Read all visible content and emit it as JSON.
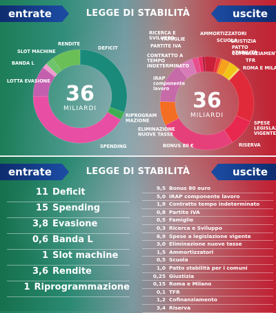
{
  "header": {
    "left_tab": "entrate",
    "title": "LEGGE DI STABILITÀ",
    "right_tab": "uscite"
  },
  "chart_data": [
    {
      "type": "pie",
      "series_side": "entrate",
      "center_value": "36",
      "center_label": "MILIARDI",
      "categories": [
        "Deficit",
        "Ripro­grammazione",
        "Spending",
        "Lotta evasione",
        "Banda L",
        "Slot machine",
        "Rendite"
      ],
      "labels": [
        "DEFICIT",
        "RIPROGRAM MAZIONE",
        "SPENDING",
        "LOTTA EVASIONE",
        "BANDA L",
        "SLOT MACHINE",
        "RENDITE"
      ],
      "values": [
        11,
        1,
        15,
        3.8,
        0.6,
        1,
        3.6
      ],
      "colors": [
        "#1a8a7a",
        "#3fae52",
        "#e84ea3",
        "#c35fae",
        "#f29bcf",
        "#6dc46a",
        "#6bbf57"
      ]
    },
    {
      "type": "pie",
      "series_side": "uscite",
      "center_value": "36",
      "center_label": "MILIARDI",
      "categories": [
        "Ammortizzatori",
        "Scuola",
        "Giustizia",
        "Patto stabilità",
        "Cofinanziamento",
        "TFR",
        "Roma e Milano",
        "Spese legislazione vigente",
        "Riserva",
        "Bonus 80 €",
        "Eliminazione nuove tasse",
        "IRAP componente lavoro",
        "Contratto a tempo indeterminato",
        "Partite IVA",
        "Famiglie",
        "Ricerca e Sviluppo"
      ],
      "labels": [
        "AMMORTIZZATORI",
        "SCUOLA",
        "GIUSTIZIA",
        "PATTO STABILITÀ",
        "COFINANZIAMENTO",
        "TFR",
        "ROMA E MILANO",
        "SPESE LEGISLAZ. VIGENTE",
        "RISERVA",
        "BONUS 80 €",
        "ELIMINAZIONE NUOVE TASSE",
        "IRAP componente lavoro",
        "CONTRATTO A TEMPO INDETERMINATO",
        "PARTITE IVA",
        "FAMIGLIE",
        "RICERCA E SVILUPPO"
      ],
      "values": [
        1.5,
        0.5,
        0.25,
        1,
        1.2,
        0.1,
        0.15,
        6.9,
        3.4,
        9.5,
        3,
        5,
        1.9,
        0.8,
        0.5,
        0.3
      ],
      "colors": [
        "#c9213a",
        "#e8323c",
        "#f07b1f",
        "#f7a21c",
        "#f2c418",
        "#f5d23c",
        "#f0e04a",
        "#e02a3a",
        "#e8284f",
        "#e6407a",
        "#f36d23",
        "#c76aa8",
        "#d77bb6",
        "#e64f8e",
        "#ec2f63",
        "#b31b3b"
      ]
    }
  ],
  "entrate_list": [
    {
      "value": "11",
      "name": "Deficit"
    },
    {
      "value": "15",
      "name": "Spending"
    },
    {
      "value": "3,8",
      "name": "Evasione"
    },
    {
      "value": "0,6",
      "name": "Banda L"
    },
    {
      "value": "1",
      "name": "Slot machine"
    },
    {
      "value": "3,6",
      "name": "Rendite"
    },
    {
      "value": "1",
      "name": "Riprogrammazione"
    }
  ],
  "uscite_list": [
    {
      "value": "9,5",
      "name": "Bonus 80 euro"
    },
    {
      "value": "5,0",
      "name": "IRAP componente lavoro"
    },
    {
      "value": "1,9",
      "name": "Contratto tempo indeterminato"
    },
    {
      "value": "0,8",
      "name": "Partite IVA"
    },
    {
      "value": "0,5",
      "name": "Famiglie"
    },
    {
      "value": "0,3",
      "name": "Ricerca e Sviluppo"
    },
    {
      "value": "6,9",
      "name": "Spese a legislazione vigente"
    },
    {
      "value": "3,0",
      "name": "Eliminazione nuove tasse"
    },
    {
      "value": "1,5",
      "name": "Ammortizzatori"
    },
    {
      "value": "0,5",
      "name": "Scuola"
    },
    {
      "value": "1,0",
      "name": "Patto stabilità per i comuni"
    },
    {
      "value": "0,25",
      "name": "Giustizia"
    },
    {
      "value": "0,15",
      "name": "Roma e Milano"
    },
    {
      "value": "0,1",
      "name": "TFR"
    },
    {
      "value": "1,2",
      "name": "Cofinanziamento"
    },
    {
      "value": "3,4",
      "name": "Riserva"
    }
  ]
}
